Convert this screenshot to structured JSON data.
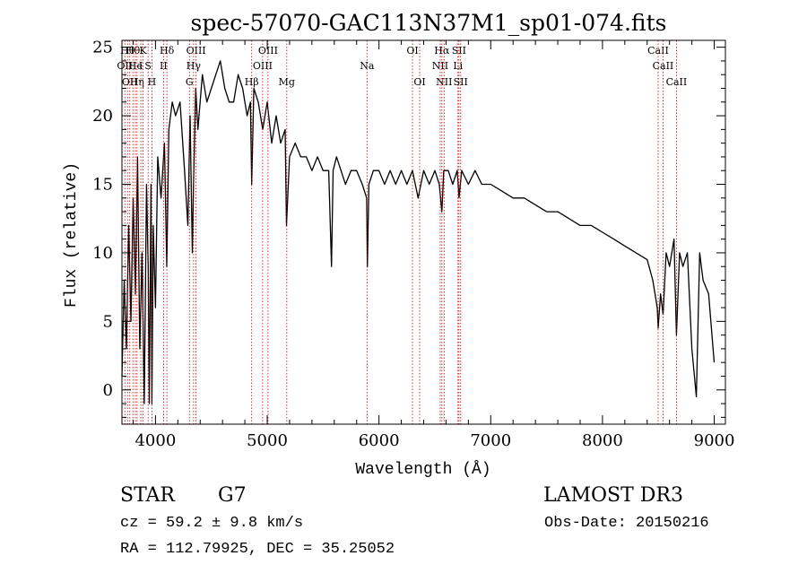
{
  "colors": {
    "ink": "#000000",
    "line_marker": "#c00000",
    "background": "#ffffff"
  },
  "chart_data": {
    "type": "line",
    "title": "spec-57070-GAC113N37M1_sp01-074.fits",
    "xlabel": "Wavelength (Å)",
    "ylabel": "Flux (relative)",
    "xlim": [
      3700,
      9100
    ],
    "ylim": [
      -2.5,
      25.5
    ],
    "xticks": [
      4000,
      5000,
      6000,
      7000,
      8000,
      9000
    ],
    "xtick_labels": [
      "4000",
      "5000",
      "6000",
      "7000",
      "8000",
      "9000"
    ],
    "yticks": [
      0,
      5,
      10,
      15,
      20,
      25
    ],
    "ytick_labels": [
      "0",
      "5",
      "10",
      "15",
      "20",
      "25"
    ],
    "x_minor_step": 200,
    "y_minor_step": 1,
    "grid": false,
    "spectrum": {
      "x": [
        3700,
        3720,
        3740,
        3760,
        3780,
        3800,
        3820,
        3840,
        3860,
        3880,
        3900,
        3920,
        3935,
        3945,
        3960,
        3968,
        3980,
        4000,
        4020,
        4050,
        4080,
        4101,
        4120,
        4150,
        4180,
        4220,
        4260,
        4290,
        4310,
        4330,
        4340,
        4360,
        4380,
        4420,
        4460,
        4500,
        4540,
        4580,
        4620,
        4660,
        4700,
        4740,
        4780,
        4820,
        4850,
        4861,
        4880,
        4920,
        4960,
        5000,
        5040,
        5080,
        5120,
        5160,
        5172,
        5200,
        5250,
        5300,
        5350,
        5400,
        5450,
        5500,
        5550,
        5575,
        5590,
        5620,
        5660,
        5700,
        5750,
        5800,
        5850,
        5890,
        5896,
        5910,
        5950,
        6000,
        6050,
        6100,
        6150,
        6200,
        6250,
        6300,
        6350,
        6400,
        6450,
        6500,
        6540,
        6563,
        6580,
        6620,
        6660,
        6700,
        6716,
        6740,
        6800,
        6860,
        6920,
        7000,
        7100,
        7200,
        7300,
        7400,
        7500,
        7600,
        7700,
        7800,
        7900,
        8000,
        8100,
        8200,
        8300,
        8400,
        8450,
        8490,
        8498,
        8520,
        8542,
        8570,
        8600,
        8640,
        8662,
        8690,
        8720,
        8760,
        8800,
        8840,
        8870,
        8900,
        8950,
        9000
      ],
      "y": [
        1,
        8,
        3,
        12,
        5,
        14,
        7,
        17,
        3,
        10,
        -1,
        15,
        9,
        -1,
        15,
        -1,
        12,
        6,
        17,
        14,
        18,
        9,
        19,
        21,
        20,
        21,
        16,
        12,
        20,
        10,
        15,
        22,
        19,
        23,
        21,
        22,
        23,
        24,
        22,
        21,
        21,
        23,
        22,
        20,
        21,
        15,
        22,
        21,
        19,
        21,
        18,
        20,
        18,
        19,
        12,
        17,
        18,
        17,
        17,
        16,
        17,
        16,
        16,
        9,
        16,
        17,
        16,
        15,
        16,
        16,
        15,
        14,
        9,
        15,
        16,
        16,
        15,
        16,
        15,
        16,
        15,
        16,
        14,
        16,
        15,
        16,
        15,
        13,
        16,
        16,
        15,
        16,
        14,
        16,
        15,
        16,
        15,
        15,
        14.5,
        14,
        14,
        13.5,
        13,
        13,
        12.5,
        12,
        12,
        11.5,
        11,
        10.5,
        10,
        9.5,
        8,
        6,
        4.5,
        7,
        5.5,
        10,
        9,
        11,
        4,
        10,
        9,
        10,
        3,
        -0.5,
        10,
        8,
        7,
        2
      ]
    },
    "line_markers": [
      {
        "wl": 3726,
        "row": 1,
        "label": "OII"
      },
      {
        "wl": 3750,
        "row": 0,
        "label": "Hθ"
      },
      {
        "wl": 3770,
        "row": 2,
        "label": "OII"
      },
      {
        "wl": 3798,
        "row": 0,
        "label": "Hθ"
      },
      {
        "wl": 3820,
        "row": 1,
        "label": "He"
      },
      {
        "wl": 3835,
        "row": 2,
        "label": "Hη"
      },
      {
        "wl": 3869,
        "row": 1,
        "label": "I"
      },
      {
        "wl": 3889,
        "row": 0,
        "label": "K"
      },
      {
        "wl": 3934,
        "row": 1,
        "label": "S"
      },
      {
        "wl": 3968,
        "row": 2,
        "label": "H"
      },
      {
        "wl": 4072,
        "row": 1,
        "label": "II"
      },
      {
        "wl": 4102,
        "row": 0,
        "label": "Hδ"
      },
      {
        "wl": 4304,
        "row": 2,
        "label": "G"
      },
      {
        "wl": 4341,
        "row": 1,
        "label": "Hγ"
      },
      {
        "wl": 4363,
        "row": 0,
        "label": "OIII"
      },
      {
        "wl": 4861,
        "row": 2,
        "label": "Hβ"
      },
      {
        "wl": 4959,
        "row": 1,
        "label": "OIII"
      },
      {
        "wl": 5007,
        "row": 0,
        "label": "OIII"
      },
      {
        "wl": 5175,
        "row": 2,
        "label": "Mg"
      },
      {
        "wl": 5893,
        "row": 1,
        "label": "Na"
      },
      {
        "wl": 6300,
        "row": 0,
        "label": "OI"
      },
      {
        "wl": 6364,
        "row": 2,
        "label": "OI"
      },
      {
        "wl": 6548,
        "row": 1,
        "label": "NII"
      },
      {
        "wl": 6563,
        "row": 0,
        "label": "Hα"
      },
      {
        "wl": 6583,
        "row": 2,
        "label": "NII"
      },
      {
        "wl": 6707,
        "row": 1,
        "label": "Li"
      },
      {
        "wl": 6716,
        "row": 0,
        "label": "SII"
      },
      {
        "wl": 6731,
        "row": 2,
        "label": "SII"
      },
      {
        "wl": 8498,
        "row": 0,
        "label": "CaII"
      },
      {
        "wl": 8542,
        "row": 1,
        "label": "CaII"
      },
      {
        "wl": 8662,
        "row": 2,
        "label": "CaII"
      }
    ]
  },
  "info": {
    "object_class": "STAR",
    "subclass": "G7",
    "survey": "LAMOST DR3",
    "redshift_text": "cz = 59.2 ± 9.8 km/s",
    "obs_date": "Obs-Date: 20150216",
    "coords_text": "RA = 112.79925, DEC =  35.25052"
  }
}
